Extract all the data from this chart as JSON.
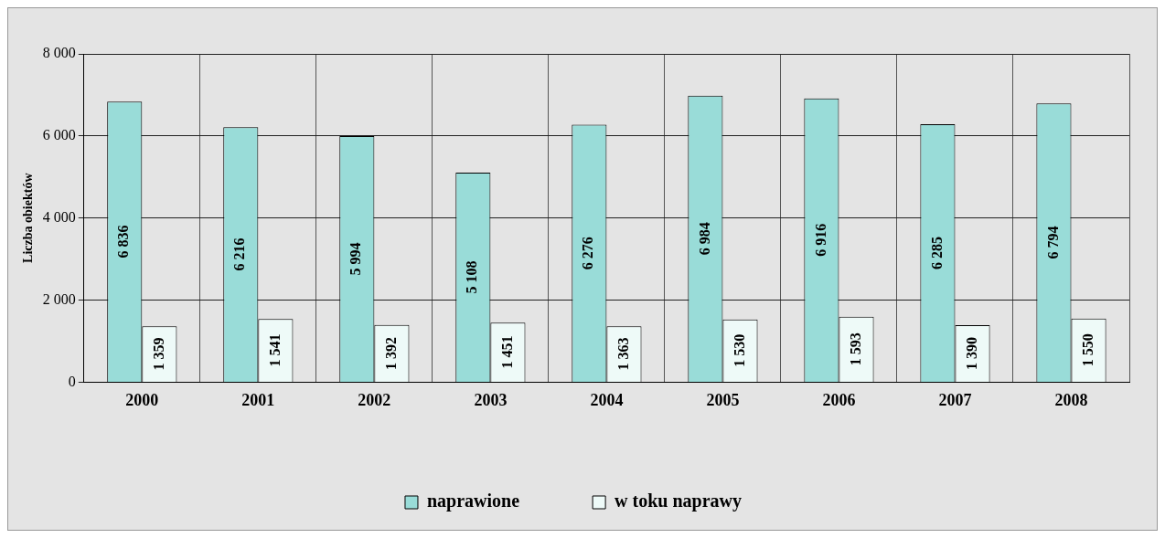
{
  "chart_data": {
    "type": "bar",
    "ylabel": "Liczba obiektów",
    "categories": [
      "2000",
      "2001",
      "2002",
      "2003",
      "2004",
      "2005",
      "2006",
      "2007",
      "2008"
    ],
    "series": [
      {
        "name": "naprawione",
        "color": "#99dcd8",
        "values": [
          6836,
          6216,
          5994,
          5108,
          6276,
          6984,
          6916,
          6285,
          6794
        ],
        "value_labels": [
          "6 836",
          "6 216",
          "5 994",
          "5 108",
          "6 276",
          "6 984",
          "6 916",
          "6 285",
          "6 794"
        ]
      },
      {
        "name": "w toku naprawy",
        "color": "#eefaf8",
        "values": [
          1359,
          1541,
          1392,
          1451,
          1363,
          1530,
          1593,
          1390,
          1550
        ],
        "value_labels": [
          "1 359",
          "1 541",
          "1 392",
          "1 451",
          "1 363",
          "1 530",
          "1 593",
          "1 390",
          "1 550"
        ]
      }
    ],
    "ylim": [
      0,
      8000
    ],
    "yticks": [
      {
        "value": 0,
        "label": "0"
      },
      {
        "value": 2000,
        "label": "2 000"
      },
      {
        "value": 4000,
        "label": "4 000"
      },
      {
        "value": 6000,
        "label": "6 000"
      },
      {
        "value": 8000,
        "label": "8 000"
      }
    ],
    "grid": true,
    "legend": "bottom"
  }
}
